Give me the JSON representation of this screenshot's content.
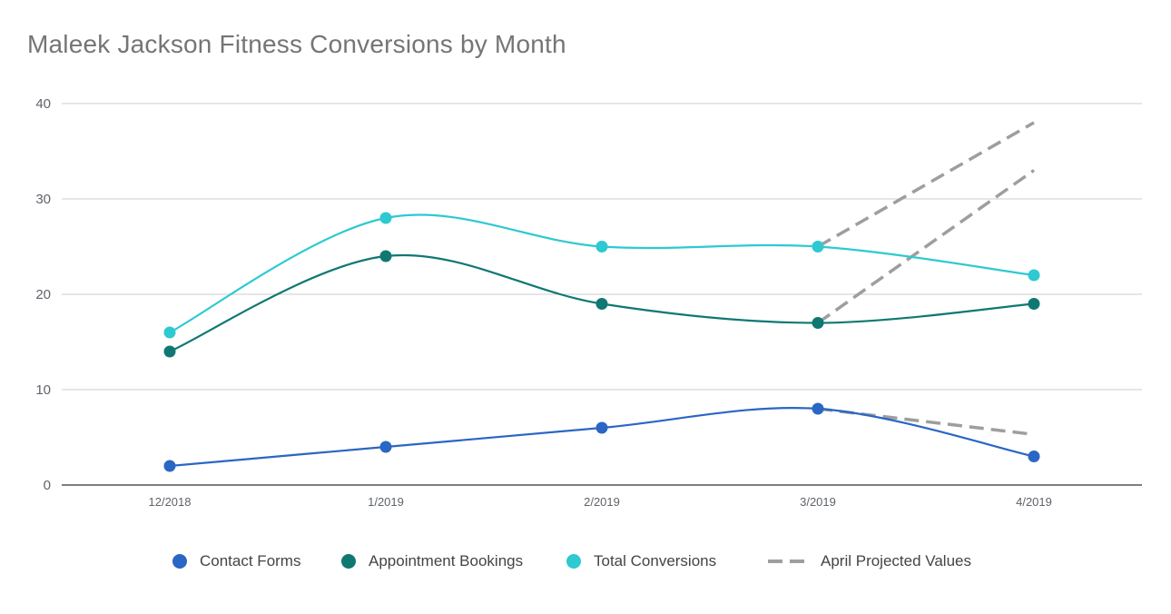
{
  "chart_data": {
    "type": "line",
    "title": "Maleek Jackson Fitness Conversions by Month",
    "xlabel": "",
    "ylabel": "",
    "categories": [
      "12/2018",
      "1/2019",
      "2/2019",
      "3/2019",
      "4/2019"
    ],
    "ylim": [
      0,
      40
    ],
    "yticks": [
      "0",
      "10",
      "20",
      "30",
      "40"
    ],
    "grid": true,
    "legend_position": "bottom",
    "series": [
      {
        "name": "Contact Forms",
        "values": [
          2,
          4,
          6,
          8,
          3
        ],
        "color": "#2a66c4",
        "style": "smooth-line-markers"
      },
      {
        "name": "Appointment Bookings",
        "values": [
          14,
          24,
          19,
          17,
          19
        ],
        "color": "#0f7873",
        "style": "smooth-line-markers"
      },
      {
        "name": "Total Conversions",
        "values": [
          16,
          28,
          25,
          25,
          22
        ],
        "color": "#2ec9d1",
        "style": "smooth-line-markers"
      },
      {
        "name": "April Projected Values",
        "color": "#9e9e9e",
        "style": "dashed",
        "segments": [
          {
            "from": [
              "3/2019",
              25
            ],
            "to": [
              "4/2019",
              38
            ]
          },
          {
            "from": [
              "3/2019",
              17
            ],
            "to": [
              "4/2019",
              33
            ]
          },
          {
            "from": [
              "3/2019",
              8
            ],
            "to": [
              "4/2019",
              5.3
            ]
          }
        ]
      }
    ]
  }
}
